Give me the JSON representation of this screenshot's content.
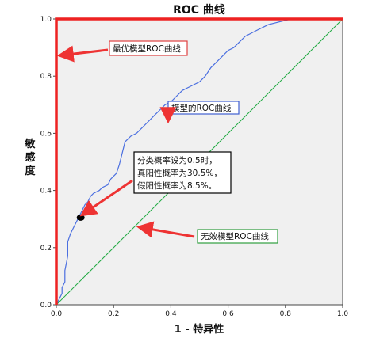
{
  "chart_data": {
    "type": "line",
    "title": "ROC 曲线",
    "xlabel": "1 - 特异性",
    "ylabel": "敏感度",
    "xlim": [
      0.0,
      1.0
    ],
    "ylim": [
      0.0,
      1.0
    ],
    "x_ticks": [
      "0.0",
      "0.2",
      "0.4",
      "0.6",
      "0.8",
      "1.0"
    ],
    "y_ticks": [
      "0.0",
      "0.2",
      "0.4",
      "0.6",
      "0.8",
      "1.0"
    ],
    "grid": false,
    "series": [
      {
        "name": "",
        "color": "#4b6fe0",
        "points": [
          [
            0.0,
            0.0
          ],
          [
            0.01,
            0.02
          ],
          [
            0.02,
            0.04
          ],
          [
            0.02,
            0.06
          ],
          [
            0.03,
            0.08
          ],
          [
            0.03,
            0.12
          ],
          [
            0.04,
            0.17
          ],
          [
            0.04,
            0.22
          ],
          [
            0.05,
            0.25
          ],
          [
            0.06,
            0.27
          ],
          [
            0.07,
            0.29
          ],
          [
            0.08,
            0.31
          ],
          [
            0.09,
            0.33
          ],
          [
            0.1,
            0.35
          ],
          [
            0.11,
            0.36
          ],
          [
            0.12,
            0.38
          ],
          [
            0.13,
            0.39
          ],
          [
            0.15,
            0.4
          ],
          [
            0.16,
            0.41
          ],
          [
            0.18,
            0.42
          ],
          [
            0.19,
            0.44
          ],
          [
            0.21,
            0.46
          ],
          [
            0.22,
            0.49
          ],
          [
            0.23,
            0.53
          ],
          [
            0.24,
            0.57
          ],
          [
            0.26,
            0.59
          ],
          [
            0.28,
            0.6
          ],
          [
            0.3,
            0.62
          ],
          [
            0.32,
            0.64
          ],
          [
            0.34,
            0.66
          ],
          [
            0.36,
            0.68
          ],
          [
            0.38,
            0.7
          ],
          [
            0.4,
            0.71
          ],
          [
            0.42,
            0.73
          ],
          [
            0.44,
            0.75
          ],
          [
            0.46,
            0.76
          ],
          [
            0.48,
            0.77
          ],
          [
            0.5,
            0.78
          ],
          [
            0.52,
            0.8
          ],
          [
            0.54,
            0.83
          ],
          [
            0.56,
            0.85
          ],
          [
            0.58,
            0.87
          ],
          [
            0.6,
            0.89
          ],
          [
            0.62,
            0.9
          ],
          [
            0.64,
            0.92
          ],
          [
            0.66,
            0.94
          ],
          [
            0.68,
            0.95
          ],
          [
            0.7,
            0.96
          ],
          [
            0.72,
            0.97
          ],
          [
            0.74,
            0.98
          ],
          [
            0.78,
            0.99
          ],
          [
            0.82,
            1.0
          ],
          [
            0.87,
            1.0
          ]
        ]
      },
      {
        "name": "",
        "color": "#22aa44",
        "points": [
          [
            0,
            0
          ],
          [
            1,
            1
          ]
        ]
      },
      {
        "name": "",
        "color": "#ee2222",
        "points": [
          [
            0,
            0
          ],
          [
            0,
            1
          ],
          [
            1,
            1
          ]
        ]
      }
    ],
    "marker": {
      "x": 0.085,
      "y": 0.305,
      "color": "#000000"
    },
    "annotations": [
      {
        "text": "最优模型ROC曲线",
        "border_color": "#e04040",
        "text_color": "#e04040",
        "arrow_color": "#ee3333"
      },
      {
        "text": "模型的ROC曲线",
        "border_color": "#3f5fd0",
        "text_color": "#3f5fd0",
        "arrow_color": "#ee3333"
      },
      {
        "text": "无效模型ROC曲线",
        "border_color": "#2e9e3e",
        "text_color": "#2e9e3e",
        "arrow_color": "#ee3333"
      },
      {
        "lines": [
          "分类概率设为0.5时，",
          "真阳性概率为30.5%，",
          "假阳性概率为8.5%。"
        ],
        "border_color": "#000000",
        "text_color": "#000000",
        "arrow_color": "#ee3333"
      }
    ]
  }
}
